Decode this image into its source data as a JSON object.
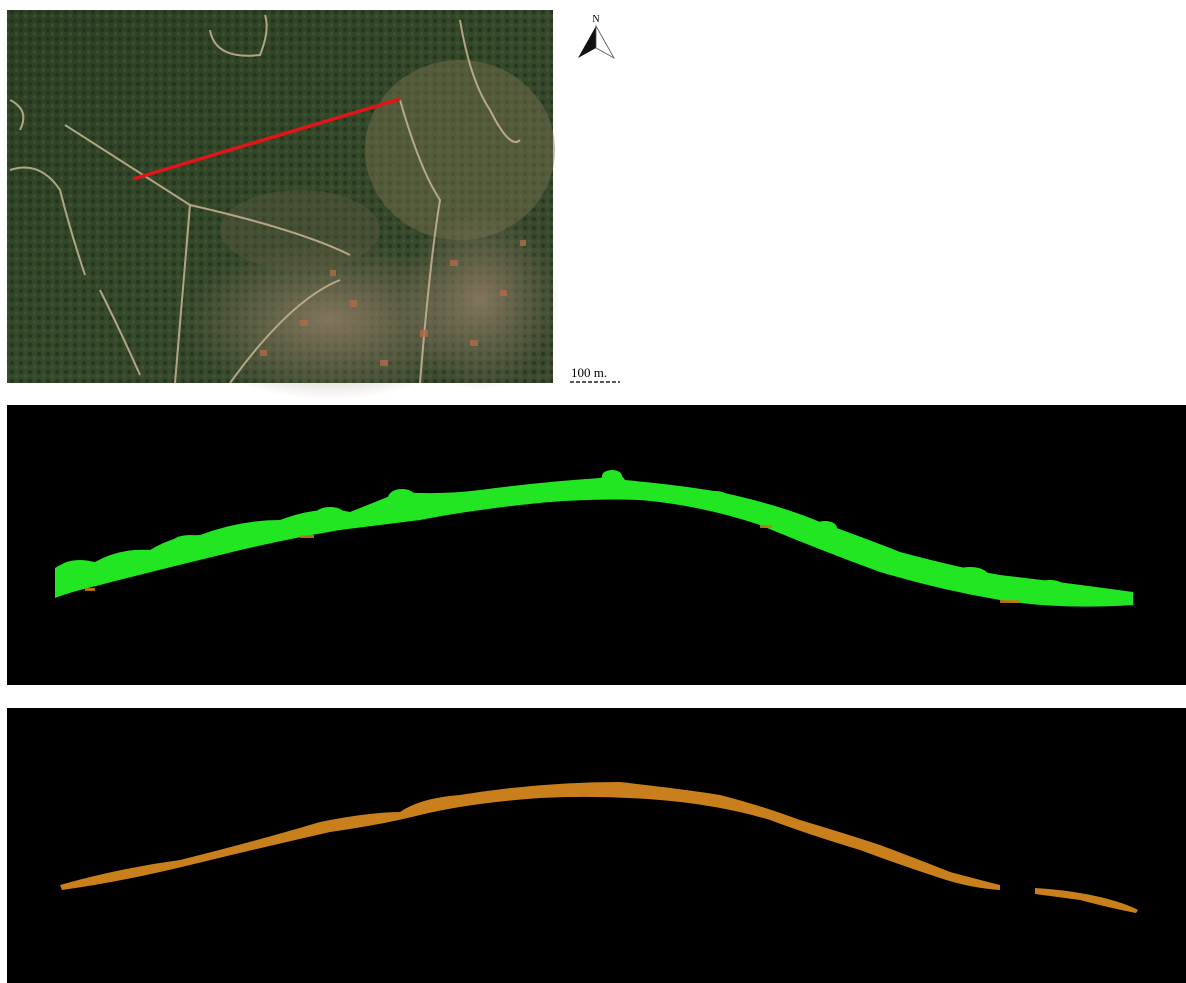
{
  "north_label": "N",
  "scale_label": "100 m."
}
